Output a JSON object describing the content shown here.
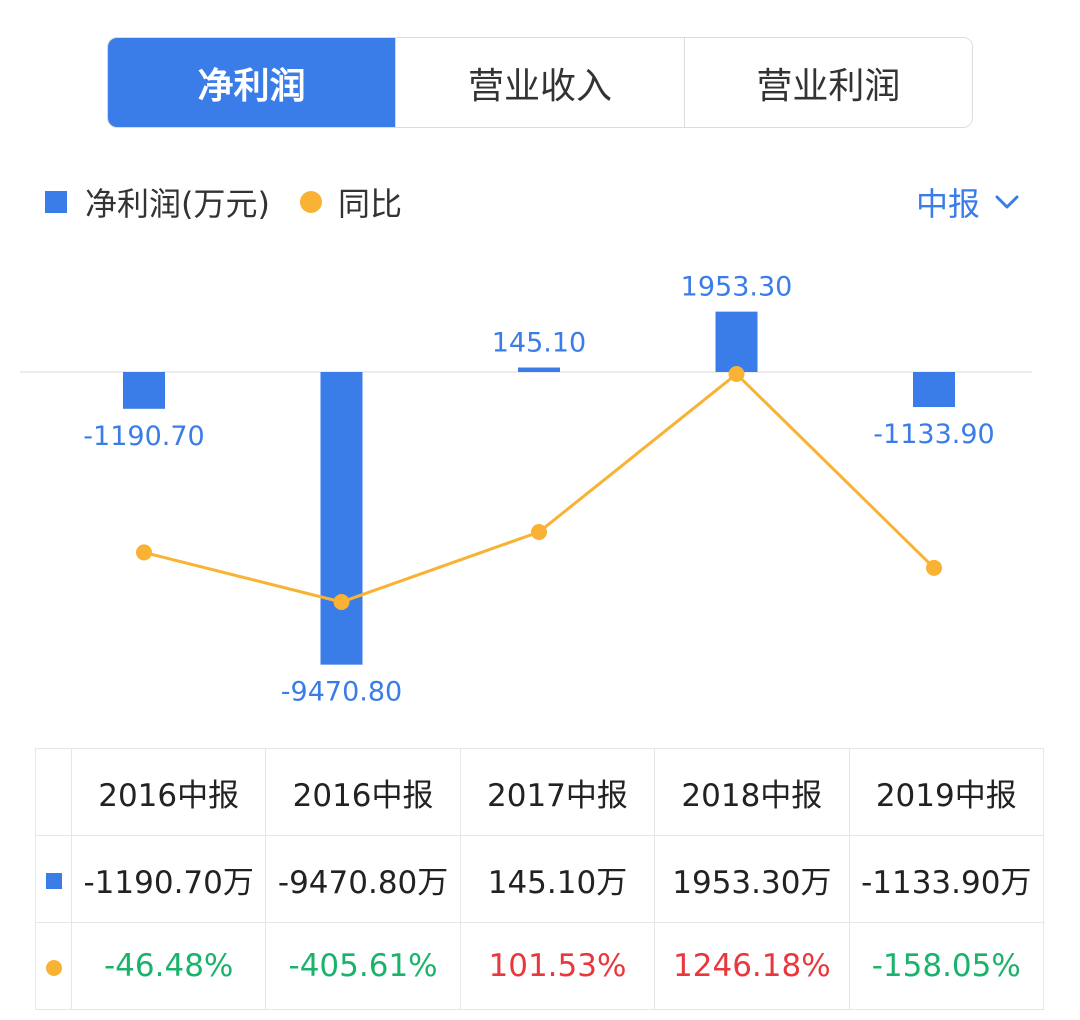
{
  "tabs": [
    {
      "label": "净利润",
      "active": true
    },
    {
      "label": "营业收入",
      "active": false
    },
    {
      "label": "营业利润",
      "active": false
    }
  ],
  "legend": {
    "bar_label": "净利润(万元)",
    "line_label": "同比"
  },
  "period_select": {
    "value": "中报",
    "icon": "chevron-down-icon"
  },
  "colors": {
    "bar": "#3a7de8",
    "line": "#f9b233",
    "positive": "#e8383d",
    "negative": "#1bb36b",
    "tab_active": "#3a7de8"
  },
  "chart_data": {
    "type": "bar",
    "categories": [
      "2016中报",
      "2016中报",
      "2017中报",
      "2018中报",
      "2019中报"
    ],
    "series": [
      {
        "name": "净利润(万元)",
        "type": "bar",
        "values": [
          -1190.7,
          -9470.8,
          145.1,
          1953.3,
          -1133.9
        ],
        "labels": [
          "-1190.70",
          "-9470.80",
          "145.10",
          "1953.30",
          "-1133.90"
        ]
      },
      {
        "name": "同比",
        "type": "line",
        "values": [
          -46.48,
          -405.61,
          101.53,
          1246.18,
          -158.05
        ]
      }
    ]
  },
  "table": {
    "headers": [
      "2016中报",
      "2016中报",
      "2017中报",
      "2018中报",
      "2019中报"
    ],
    "profit_row": [
      "-1190.70万",
      "-9470.80万",
      "145.10万",
      "1953.30万",
      "-1133.90万"
    ],
    "yoy_row": [
      "-46.48%",
      "-405.61%",
      "101.53%",
      "1246.18%",
      "-158.05%"
    ]
  }
}
